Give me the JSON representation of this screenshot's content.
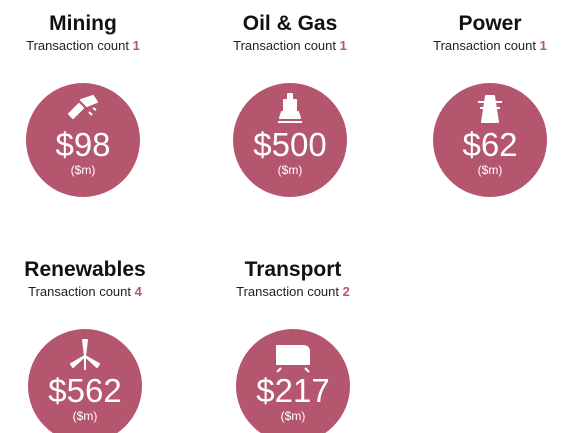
{
  "count_label": "Transaction count",
  "unit_label": "($m)",
  "sectors": [
    {
      "name": "Mining",
      "count": 1,
      "value": "$98"
    },
    {
      "name": "Oil & Gas",
      "count": 1,
      "value": "$500"
    },
    {
      "name": "Power",
      "count": 1,
      "value": "$62"
    },
    {
      "name": "Renewables",
      "count": 4,
      "value": "$562"
    },
    {
      "name": "Transport",
      "count": 2,
      "value": "$217"
    }
  ]
}
